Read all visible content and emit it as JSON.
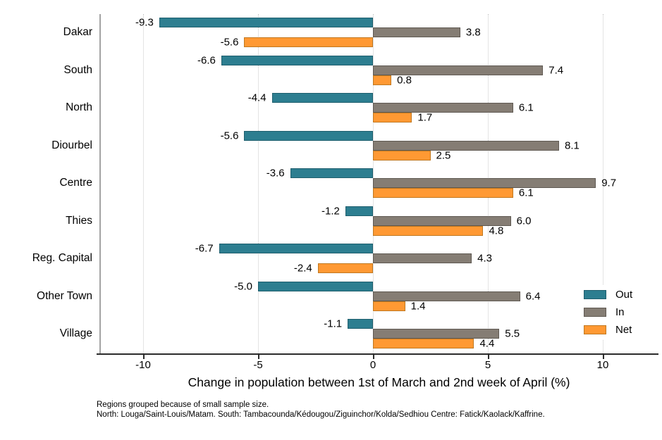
{
  "chart_data": {
    "type": "bar",
    "orientation": "horizontal",
    "title": "",
    "xlabel": "Change in population between 1st of March and 2nd week of April (%)",
    "ylabel": "",
    "categories": [
      "Dakar",
      "South",
      "North",
      "Diourbel",
      "Centre",
      "Thies",
      "Reg. Capital",
      "Other Town",
      "Village"
    ],
    "series": [
      {
        "name": "Out",
        "color": "#2d7e90",
        "border_color": "#1f5f6e",
        "values": [
          -9.3,
          -6.6,
          -4.4,
          -5.6,
          -3.6,
          -1.2,
          -6.7,
          -5.0,
          -1.1
        ]
      },
      {
        "name": "In",
        "color": "#857d74",
        "border_color": "#5f5952",
        "values": [
          3.8,
          7.4,
          6.1,
          8.1,
          9.7,
          6.0,
          4.3,
          6.4,
          5.5
        ]
      },
      {
        "name": "Net",
        "color": "#ff9933",
        "border_color": "#c07820",
        "values": [
          -5.6,
          0.8,
          1.7,
          2.5,
          6.1,
          4.8,
          -2.4,
          1.4,
          4.4
        ]
      }
    ],
    "x_ticks": [
      -10,
      -5,
      0,
      5,
      10
    ],
    "x_tick_labels": [
      "-10",
      "-5",
      "0",
      "5",
      "10"
    ],
    "xlim": [
      -11.9,
      12.4
    ],
    "grid": "dotted-vertical",
    "legend_position": "inside-bottom-right",
    "value_label_decimals": 1
  },
  "footnotes": [
    "Regions grouped because of small sample size.",
    "North: Louga/Saint-Louis/Matam. South: Tambacounda/Kédougou/Ziguinchor/Kolda/Sedhiou Centre: Fatick/Kaolack/Kaffrine."
  ]
}
